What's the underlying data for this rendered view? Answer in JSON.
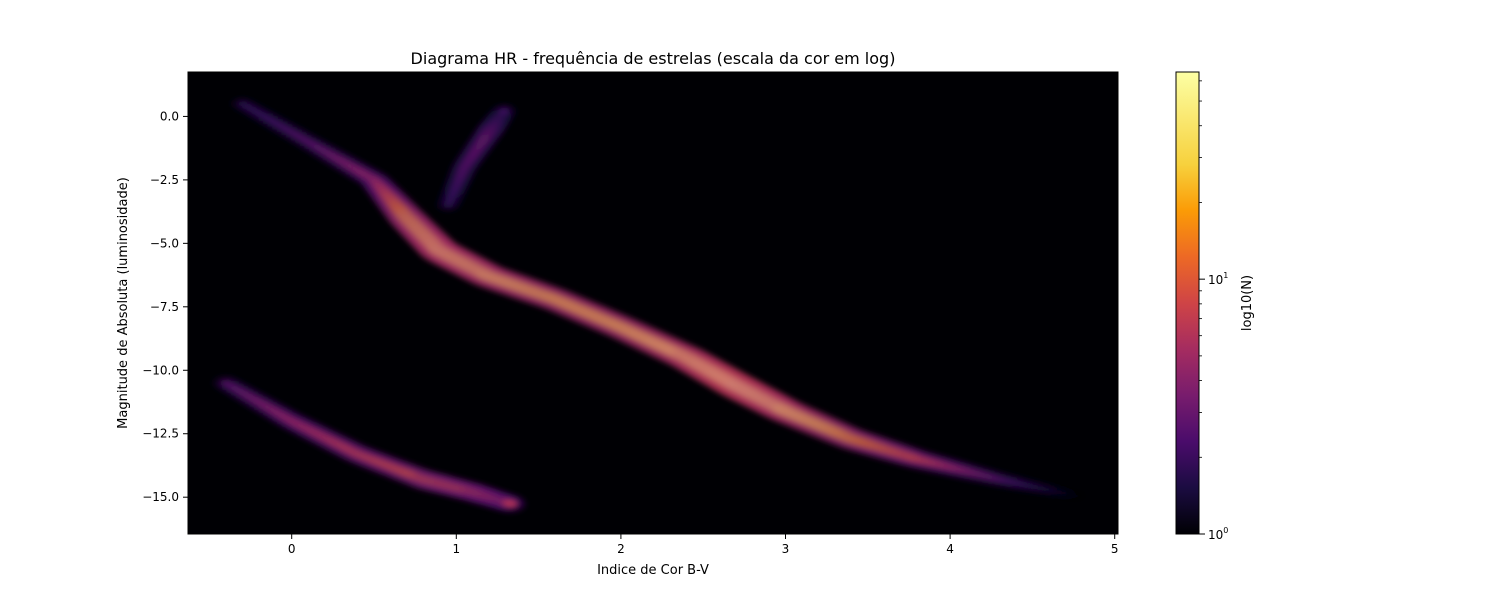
{
  "chart_data": {
    "type": "heatmap",
    "title": "Diagrama HR - frequência de estrelas (escala da cor em log)",
    "xlabel": "Indice de Cor B-V",
    "ylabel": "Magnitude de Absoluta (luminosidade)",
    "xlim": [
      -0.63,
      5.02
    ],
    "ylim": [
      -16.45,
      1.75
    ],
    "x_ticks": [
      {
        "value": 0,
        "label": "0"
      },
      {
        "value": 1,
        "label": "1"
      },
      {
        "value": 2,
        "label": "2"
      },
      {
        "value": 3,
        "label": "3"
      },
      {
        "value": 4,
        "label": "4"
      },
      {
        "value": 5,
        "label": "5"
      }
    ],
    "y_ticks": [
      {
        "value": 0,
        "label": "0.0"
      },
      {
        "value": -2.5,
        "label": "−2.5"
      },
      {
        "value": -5,
        "label": "−5.0"
      },
      {
        "value": -7.5,
        "label": "−7.5"
      },
      {
        "value": -10,
        "label": "−10.0"
      },
      {
        "value": -12.5,
        "label": "−12.5"
      },
      {
        "value": -15,
        "label": "−15.0"
      }
    ],
    "colormap": "inferno",
    "background_color": "#000004",
    "colorbar": {
      "label": "log10(N)",
      "scale": "log",
      "min": 1,
      "max": 65,
      "ticks": [
        {
          "value": 1,
          "base": "10",
          "exp": "0"
        },
        {
          "value": 10,
          "base": "10",
          "exp": "1"
        }
      ]
    },
    "density_ridges": [
      {
        "name": "main",
        "points": [
          {
            "x": -0.3,
            "y": 0.5,
            "n": 2
          },
          {
            "x": 0.1,
            "y": -1.0,
            "n": 3
          },
          {
            "x": 0.5,
            "y": -2.5,
            "n": 6
          },
          {
            "x": 0.7,
            "y": -4.0,
            "n": 25
          },
          {
            "x": 0.9,
            "y": -5.3,
            "n": 40
          },
          {
            "x": 1.2,
            "y": -6.3,
            "n": 35
          },
          {
            "x": 1.6,
            "y": -7.2,
            "n": 28
          },
          {
            "x": 2.0,
            "y": -8.3,
            "n": 30
          },
          {
            "x": 2.4,
            "y": -9.5,
            "n": 42
          },
          {
            "x": 2.7,
            "y": -10.6,
            "n": 58
          },
          {
            "x": 3.0,
            "y": -11.6,
            "n": 40
          },
          {
            "x": 3.4,
            "y": -12.7,
            "n": 22
          },
          {
            "x": 3.8,
            "y": -13.5,
            "n": 10
          },
          {
            "x": 4.3,
            "y": -14.3,
            "n": 3
          },
          {
            "x": 4.8,
            "y": -15.0,
            "n": 1
          }
        ]
      },
      {
        "name": "lower",
        "points": [
          {
            "x": -0.4,
            "y": -10.5,
            "n": 3
          },
          {
            "x": 0.0,
            "y": -12.0,
            "n": 6
          },
          {
            "x": 0.4,
            "y": -13.3,
            "n": 9
          },
          {
            "x": 0.8,
            "y": -14.3,
            "n": 12
          },
          {
            "x": 1.1,
            "y": -14.8,
            "n": 10
          },
          {
            "x": 1.35,
            "y": -15.3,
            "n": 6
          }
        ]
      },
      {
        "name": "upper-branch",
        "points": [
          {
            "x": 0.95,
            "y": -3.5,
            "n": 2
          },
          {
            "x": 1.05,
            "y": -2.0,
            "n": 3
          },
          {
            "x": 1.2,
            "y": -0.6,
            "n": 4
          },
          {
            "x": 1.3,
            "y": 0.3,
            "n": 2
          }
        ]
      }
    ]
  }
}
